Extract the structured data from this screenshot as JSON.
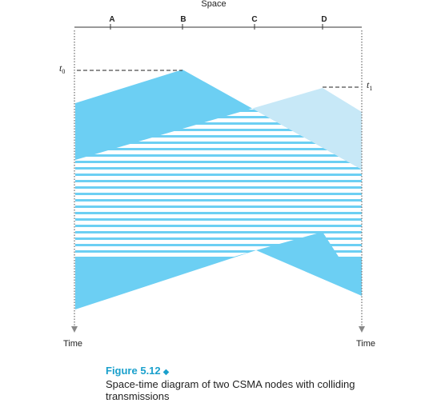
{
  "axis": {
    "space_label": "Space",
    "time_label_left": "Time",
    "time_label_right": "Time"
  },
  "nodes": [
    "A",
    "B",
    "C",
    "D"
  ],
  "markers": {
    "t0": {
      "letter": "t",
      "sub": "0"
    },
    "t1": {
      "letter": "t",
      "sub": "1"
    }
  },
  "caption": {
    "figure_number": "Figure 5.12",
    "text": "Space-time diagram of two CSMA nodes with colliding transmissions"
  },
  "colors": {
    "transmission_b": "#6ccff3",
    "transmission_d": "#c7e8f7",
    "stripe_overlap": "#6ccff3",
    "axis": "#333333",
    "dotted_timeline": "#888888",
    "figure_number": "#1aa0cc"
  }
}
